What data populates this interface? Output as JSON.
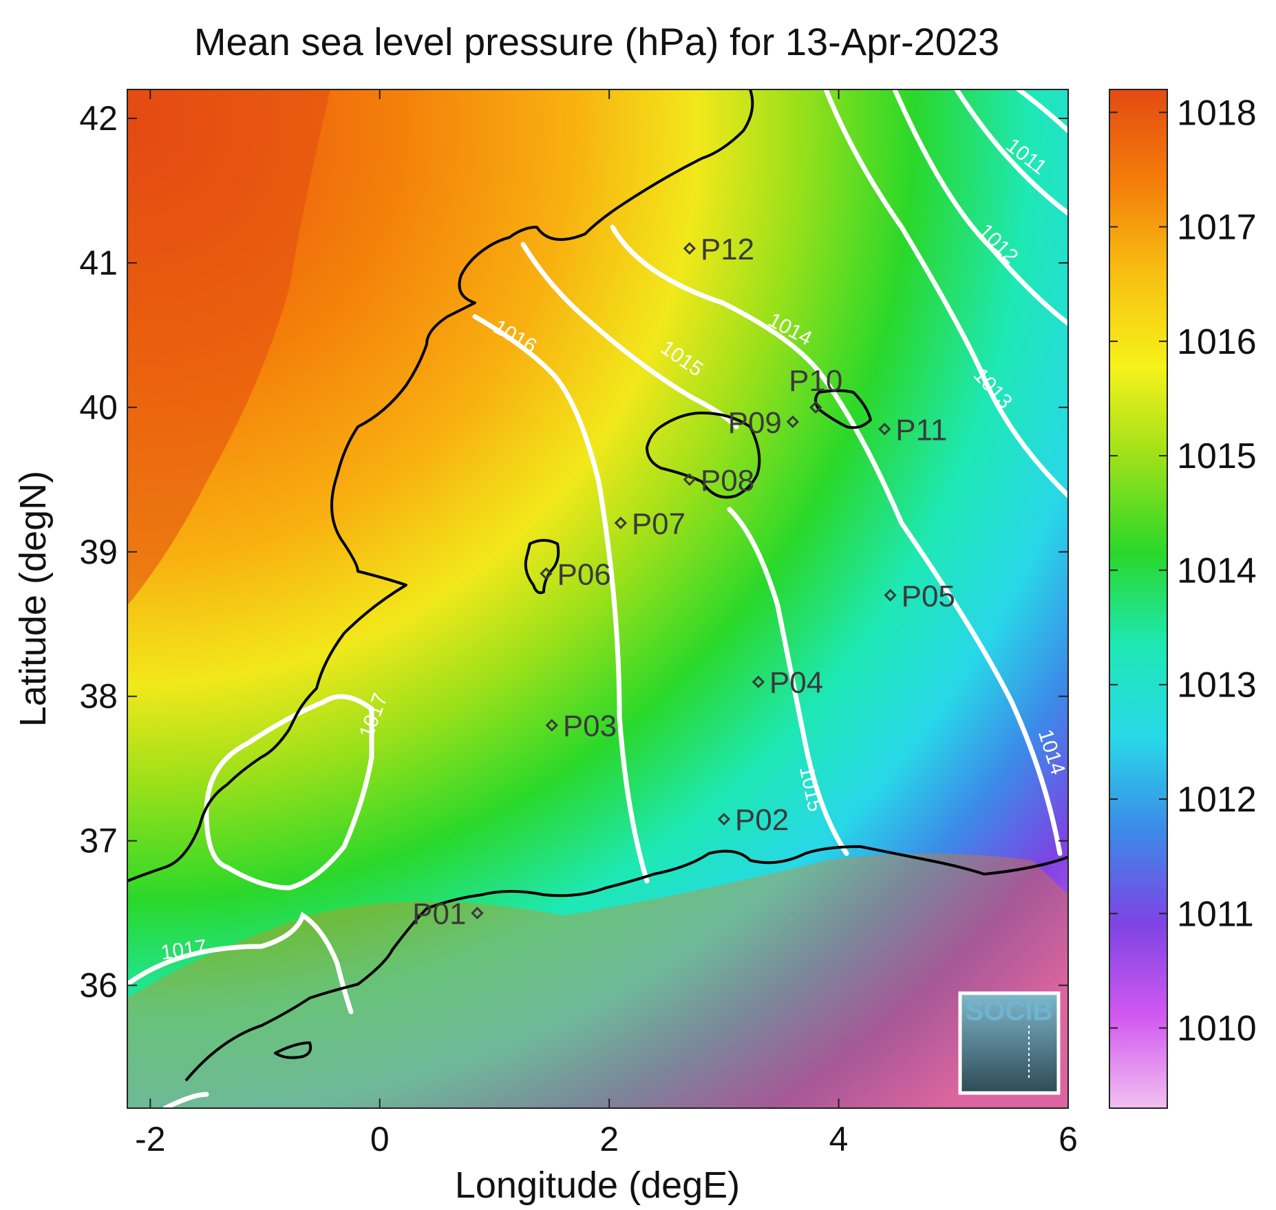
{
  "title": "Mean sea level pressure (hPa) for 13-Apr-2023",
  "logo_text": "SOCIB",
  "colors": {
    "contour": "#ffffff",
    "coast": "#000000",
    "station": "#3a3a3a",
    "logo": "#6fb5d0"
  },
  "chart_data": {
    "type": "heatmap",
    "xlabel": "Longitude (degE)",
    "ylabel": "Latitude (degN)",
    "xlim": [
      -2.2,
      6.0
    ],
    "ylim": [
      35.15,
      42.2
    ],
    "xticks": [
      -2,
      0,
      2,
      4,
      6
    ],
    "xtick_labels": [
      "-2",
      "0",
      "2",
      "4",
      "6"
    ],
    "yticks": [
      36,
      37,
      38,
      39,
      40,
      41,
      42
    ],
    "ytick_labels": [
      "36",
      "37",
      "38",
      "39",
      "40",
      "41",
      "42"
    ],
    "colorbar": {
      "range": [
        1009.3,
        1018.2
      ],
      "ticks": [
        1010,
        1011,
        1012,
        1013,
        1014,
        1015,
        1016,
        1017,
        1018
      ],
      "tick_labels": [
        "1010",
        "1011",
        "1012",
        "1013",
        "1014",
        "1015",
        "1016",
        "1017",
        "1018"
      ],
      "colormap": [
        "#f2c0f0",
        "#d158f0",
        "#7d44e4",
        "#3c8ae8",
        "#28d8e8",
        "#1ee8b4",
        "#2ad82a",
        "#9ae01a",
        "#f6f21a",
        "#f8c012",
        "#f47e0a",
        "#e44a12"
      ]
    },
    "contour_labels": [
      {
        "text": "1011",
        "lon": 5.6,
        "lat": 41.7,
        "angle": 38
      },
      {
        "text": "1012",
        "lon": 5.35,
        "lat": 41.1,
        "angle": 45
      },
      {
        "text": "1013",
        "lon": 5.3,
        "lat": 40.1,
        "angle": 48
      },
      {
        "text": "1014",
        "lon": 3.55,
        "lat": 40.5,
        "angle": 28
      },
      {
        "text": "1015",
        "lon": 2.6,
        "lat": 40.3,
        "angle": 35
      },
      {
        "text": "1016",
        "lon": 1.15,
        "lat": 40.45,
        "angle": 30
      },
      {
        "text": "1015",
        "lon": 3.7,
        "lat": 37.35,
        "angle": 78
      },
      {
        "text": "1014",
        "lon": 5.8,
        "lat": 37.6,
        "angle": 72
      },
      {
        "text": "1017",
        "lon": 0.0,
        "lat": 37.85,
        "angle": -70
      },
      {
        "text": "1017",
        "lon": -1.7,
        "lat": 36.2,
        "angle": -8
      }
    ],
    "stations": [
      {
        "name": "P01",
        "lon": 0.85,
        "lat": 36.5,
        "label_side": "left"
      },
      {
        "name": "P02",
        "lon": 3.0,
        "lat": 37.15,
        "label_side": "right"
      },
      {
        "name": "P03",
        "lon": 1.5,
        "lat": 37.8,
        "label_side": "right"
      },
      {
        "name": "P04",
        "lon": 3.3,
        "lat": 38.1,
        "label_side": "right"
      },
      {
        "name": "P05",
        "lon": 4.45,
        "lat": 38.7,
        "label_side": "right"
      },
      {
        "name": "P06",
        "lon": 1.45,
        "lat": 38.85,
        "label_side": "right"
      },
      {
        "name": "P07",
        "lon": 2.1,
        "lat": 39.2,
        "label_side": "right"
      },
      {
        "name": "P08",
        "lon": 2.7,
        "lat": 39.5,
        "label_side": "right"
      },
      {
        "name": "P09",
        "lon": 3.6,
        "lat": 39.9,
        "label_side": "left"
      },
      {
        "name": "P10",
        "lon": 3.8,
        "lat": 40.0,
        "label_side": "above"
      },
      {
        "name": "P11",
        "lon": 4.4,
        "lat": 39.85,
        "label_side": "right"
      },
      {
        "name": "P12",
        "lon": 2.7,
        "lat": 41.1,
        "label_side": "right"
      }
    ]
  }
}
